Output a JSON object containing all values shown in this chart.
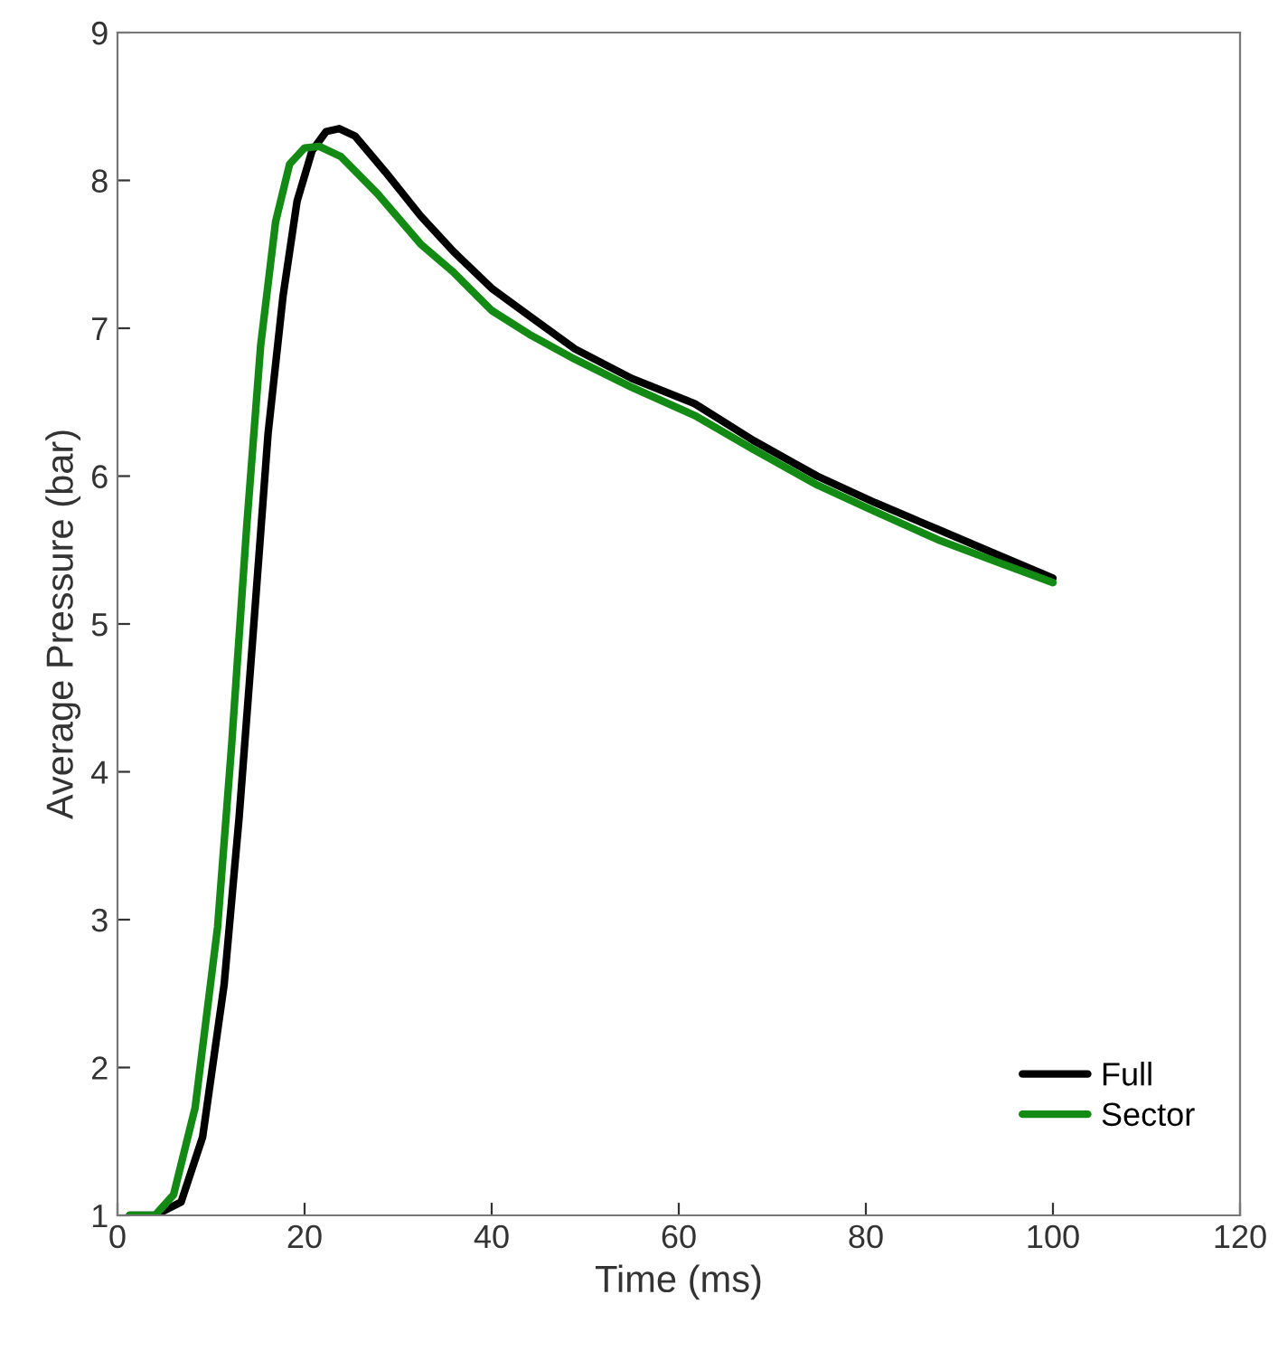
{
  "chart_data": {
    "type": "line",
    "xlabel": "Time (ms)",
    "ylabel": "Average Pressure (bar)",
    "xlim": [
      0,
      120
    ],
    "ylim": [
      1,
      9
    ],
    "xticks": [
      0,
      20,
      40,
      60,
      80,
      100,
      120
    ],
    "yticks": [
      1,
      2,
      3,
      4,
      5,
      6,
      7,
      8,
      9
    ],
    "grid": false,
    "legend": "bottom right",
    "marker": "none",
    "line_style": "solid",
    "series": [
      {
        "name": "Full",
        "color": "#000000",
        "x": [
          1.3,
          4,
          6.8,
          9.1,
          11.4,
          13,
          14.6,
          16.1,
          17.7,
          19.2,
          20.8,
          22.3,
          23.7,
          25.4,
          28.6,
          32.4,
          35.9,
          40,
          44.1,
          48.9,
          55,
          61.7,
          68,
          74.8,
          81,
          87.7,
          94,
          100
        ],
        "values": [
          1,
          1,
          1.09,
          1.53,
          2.56,
          3.69,
          5.02,
          6.29,
          7.22,
          7.86,
          8.2,
          8.33,
          8.35,
          8.3,
          8.06,
          7.76,
          7.52,
          7.27,
          7.08,
          6.86,
          6.66,
          6.49,
          6.24,
          6.0,
          5.82,
          5.64,
          5.47,
          5.31
        ]
      },
      {
        "name": "Sector",
        "color": "#138a13",
        "x": [
          1.3,
          4,
          6,
          8.3,
          10.7,
          12.2,
          13.8,
          15.3,
          16.9,
          18.4,
          20,
          21.6,
          23.9,
          27.8,
          32.4,
          35.9,
          40,
          44,
          48.9,
          55,
          61.7,
          68,
          74.8,
          81,
          87.7,
          94,
          100
        ],
        "values": [
          1,
          1,
          1.14,
          1.73,
          2.95,
          4.18,
          5.65,
          6.88,
          7.72,
          8.11,
          8.22,
          8.23,
          8.16,
          7.91,
          7.57,
          7.38,
          7.12,
          6.96,
          6.79,
          6.6,
          6.41,
          6.18,
          5.94,
          5.76,
          5.57,
          5.42,
          5.28
        ]
      }
    ]
  }
}
